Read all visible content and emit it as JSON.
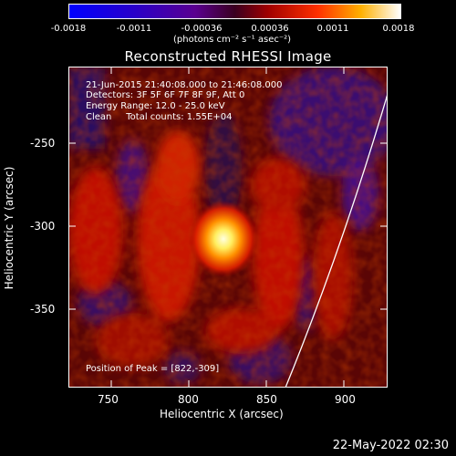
{
  "colorbar": {
    "ticks": [
      "-0.0018",
      "-0.0011",
      "-0.00036",
      "0.00036",
      "0.0011",
      "0.0018"
    ],
    "units": "(photons cm⁻² s⁻¹ asec⁻²)"
  },
  "title": "Reconstructed RHESSI Image",
  "info": {
    "time_range": "21-Jun-2015 21:40:08.000 to 21:46:08.000",
    "detectors": "Detectors: 3F 5F 6F 7F 8F 9F, Att 0",
    "energy": "Energy Range: 12.0 - 25.0 keV",
    "clean": "Clean     Total counts: 1.55E+04",
    "peak": "Position of Peak = [822,-309]"
  },
  "axes": {
    "xlabel": "Heliocentric X (arcsec)",
    "ylabel": "Heliocentric Y (arcsec)",
    "xticks": [
      "750",
      "800",
      "850",
      "900"
    ],
    "yticks": [
      "-250",
      "-300",
      "-350"
    ]
  },
  "timestamp": "22-May-2022 02:30",
  "colors": {
    "background": "#000000",
    "text": "#ffffff",
    "limb": "#ffffff"
  }
}
